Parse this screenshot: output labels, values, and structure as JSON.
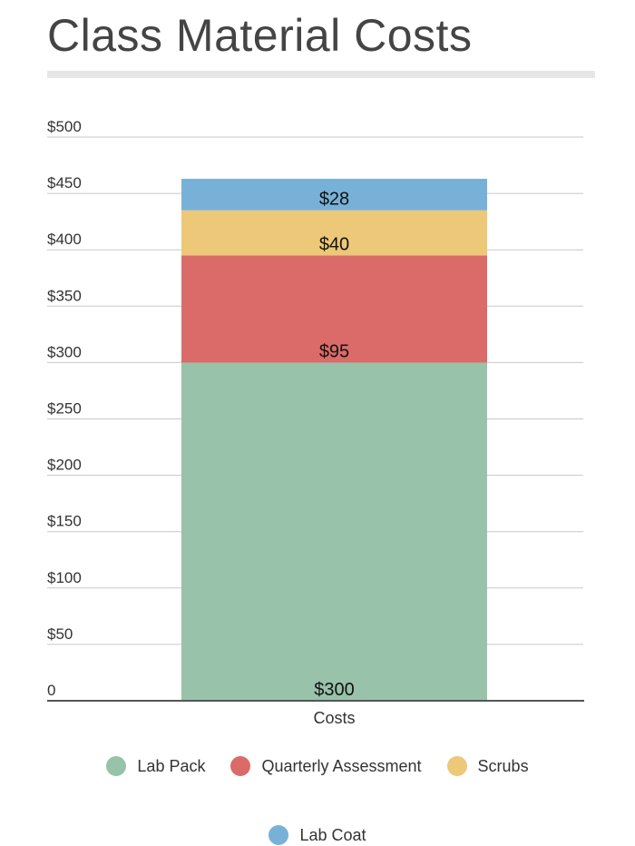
{
  "title": "Class Material Costs",
  "chart_data": {
    "type": "bar",
    "stacked": true,
    "title": "Class Material Costs",
    "categories": [
      "Costs"
    ],
    "series": [
      {
        "name": "Lab Pack",
        "values": [
          300
        ],
        "color": "#99c2aa",
        "label": "$300"
      },
      {
        "name": "Quarterly Assessment",
        "values": [
          95
        ],
        "color": "#db6b68",
        "label": "$95"
      },
      {
        "name": "Scrubs",
        "values": [
          40
        ],
        "color": "#ecc878",
        "label": "$40"
      },
      {
        "name": "Lab Coat",
        "values": [
          28
        ],
        "color": "#78b1d8",
        "label": "$28"
      }
    ],
    "ylim": [
      0,
      500
    ],
    "yticks": [
      0,
      50,
      100,
      150,
      200,
      250,
      300,
      350,
      400,
      450,
      500
    ],
    "ytick_labels": [
      "0",
      "$50",
      "$100",
      "$150",
      "$200",
      "$250",
      "$300",
      "$350",
      "$400",
      "$450",
      "$500"
    ],
    "grid": true,
    "legend_position": "bottom"
  }
}
